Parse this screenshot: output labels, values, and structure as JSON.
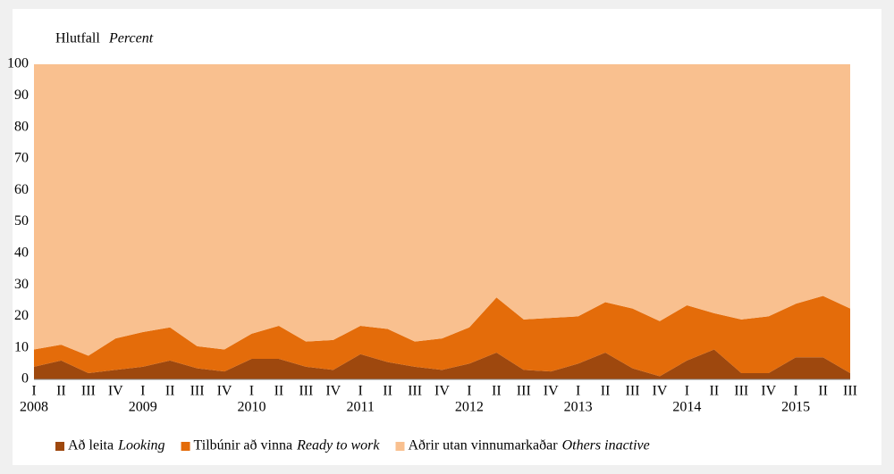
{
  "chart_data": {
    "type": "stacked_area",
    "y_label": "Hlutfall",
    "y_label_en": "Percent",
    "categories": [
      "I",
      "II",
      "III",
      "IV",
      "I",
      "II",
      "III",
      "IV",
      "I",
      "II",
      "III",
      "IV",
      "I",
      "II",
      "III",
      "IV",
      "I",
      "II",
      "III",
      "IV",
      "I",
      "II",
      "III",
      "IV",
      "I",
      "II",
      "III",
      "IV",
      "I",
      "II",
      "III"
    ],
    "category_groups": [
      "2008",
      "2009",
      "2010",
      "2011",
      "2012",
      "2013",
      "2014",
      "2015"
    ],
    "series": [
      {
        "name": "Að leita",
        "name_en": "Looking",
        "color": "#9e480e",
        "values": [
          4,
          6,
          2,
          3,
          4,
          6,
          3.5,
          2.5,
          6.5,
          6.5,
          4,
          3,
          8,
          5.5,
          4,
          3,
          5,
          8.5,
          3,
          2.5,
          5,
          8.5,
          3.5,
          1,
          6,
          9.5,
          2,
          2,
          7,
          7,
          2
        ]
      },
      {
        "name": "Tilbúnir að vinna",
        "name_en": "Ready to work",
        "color": "#e46c0a",
        "values": [
          5.5,
          5,
          5.5,
          10,
          11,
          10.5,
          7,
          7,
          8,
          10.5,
          8,
          9.5,
          9,
          10.5,
          8,
          10,
          11.5,
          17.5,
          16,
          17,
          15,
          16,
          19,
          17.5,
          17.5,
          11.5,
          17,
          18,
          17,
          19.5,
          20.5
        ]
      },
      {
        "name": "Aðrir utan vinnumarkaðar",
        "name_en": "Others inactive",
        "color": "#f9c08f",
        "values": [
          90.5,
          89,
          92.5,
          87,
          85,
          83.5,
          89.5,
          90.5,
          85.5,
          83,
          88,
          87.5,
          83,
          84,
          88,
          87,
          83.5,
          74,
          81,
          80.5,
          80,
          75.5,
          77.5,
          81.5,
          76.5,
          79,
          81,
          80,
          76,
          73.5,
          77.5
        ]
      }
    ],
    "ylim": [
      0,
      100
    ],
    "yticks": [
      0,
      10,
      20,
      30,
      40,
      50,
      60,
      70,
      80,
      90,
      100
    ]
  }
}
